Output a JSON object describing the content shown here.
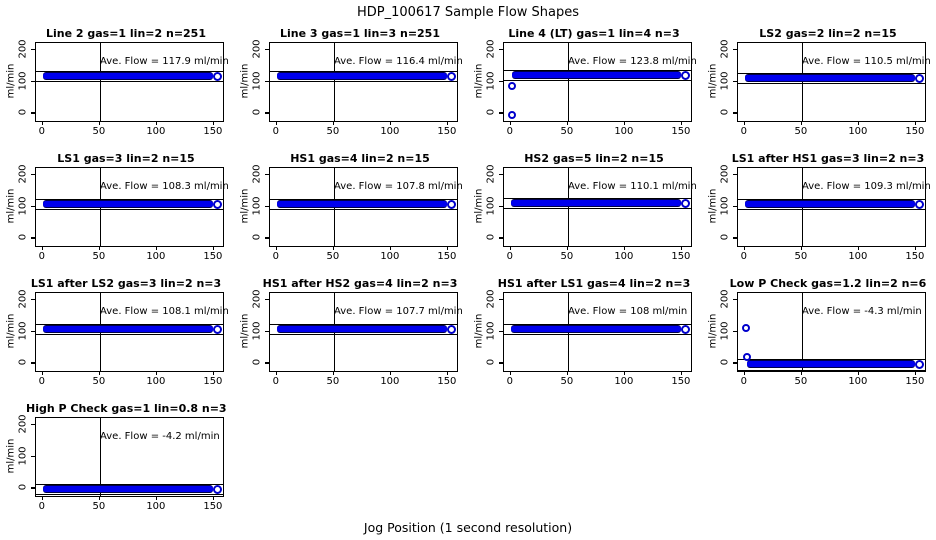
{
  "header": {
    "title": "HDP_100617  Sample Flow Shapes"
  },
  "footer": {
    "xlabel": "Jog Position (1 second resolution)"
  },
  "colors": {
    "point_blue": "#0000ee",
    "axis_black": "#000000",
    "background": "#ffffff"
  },
  "chart_data": {
    "type": "scatter",
    "title": "HDP_100617  Sample Flow Shapes",
    "xlabel": "Jog Position (1 second resolution)",
    "ylabel": "ml/min",
    "xlim": [
      -6,
      158
    ],
    "ylim": [
      -25,
      222
    ],
    "x_ticks": [
      0,
      50,
      100,
      150
    ],
    "y_ticks": [
      0,
      100,
      200
    ],
    "vline_x": 50,
    "grid": "vertical line at x=50 only",
    "legend": "none",
    "panels": [
      {
        "title": "Line 2 gas=1 lin=2 n=251",
        "gas": "1",
        "lin": "2",
        "n": "251",
        "ave_flow": 117.9,
        "annotation": "Ave. Flow =  117.9  ml/min",
        "band": {
          "x_start": 0,
          "x_end": 153,
          "center": 117.9,
          "half_height": 9
        },
        "outliers": []
      },
      {
        "title": "Line 3 gas=1 lin=3 n=251",
        "gas": "1",
        "lin": "3",
        "n": "251",
        "ave_flow": 116.4,
        "annotation": "Ave. Flow =  116.4  ml/min",
        "band": {
          "x_start": 0,
          "x_end": 153,
          "center": 116.4,
          "half_height": 9
        },
        "outliers": []
      },
      {
        "title": "Line 4 (LT) gas=1 lin=4 n=3",
        "gas": "1",
        "lin": "4",
        "n": "3",
        "ave_flow": 123.8,
        "annotation": "Ave. Flow =  123.8  ml/min",
        "band": {
          "x_start": 1,
          "x_end": 153,
          "center": 122,
          "half_height": 10
        },
        "outliers": [
          {
            "x": 1,
            "y": 87
          },
          {
            "x": 1,
            "y": -5
          }
        ]
      },
      {
        "title": "LS2 gas=2 lin=2 n=15",
        "gas": "2",
        "lin": "2",
        "n": "15",
        "ave_flow": 110.5,
        "annotation": "Ave. Flow =  110.5  ml/min",
        "band": {
          "x_start": 0,
          "x_end": 153,
          "center": 110.5,
          "half_height": 9
        },
        "outliers": []
      },
      {
        "title": "LS1 gas=3 lin=2 n=15",
        "gas": "3",
        "lin": "2",
        "n": "15",
        "ave_flow": 108.3,
        "annotation": "Ave. Flow =  108.3  ml/min",
        "band": {
          "x_start": 0,
          "x_end": 153,
          "center": 108.3,
          "half_height": 9
        },
        "outliers": []
      },
      {
        "title": "HS1 gas=4 lin=2 n=15",
        "gas": "4",
        "lin": "2",
        "n": "15",
        "ave_flow": 107.8,
        "annotation": "Ave. Flow =  107.8  ml/min",
        "band": {
          "x_start": 0,
          "x_end": 153,
          "center": 107.8,
          "half_height": 9
        },
        "outliers": []
      },
      {
        "title": "HS2 gas=5 lin=2 n=15",
        "gas": "5",
        "lin": "2",
        "n": "15",
        "ave_flow": 110.1,
        "annotation": "Ave. Flow =  110.1  ml/min",
        "band": {
          "x_start": 0,
          "x_end": 153,
          "center": 110.1,
          "half_height": 9
        },
        "outliers": []
      },
      {
        "title": "LS1 after HS1 gas=3 lin=2 n=3",
        "gas": "3",
        "lin": "2",
        "n": "3",
        "ave_flow": 109.3,
        "annotation": "Ave. Flow =  109.3  ml/min",
        "band": {
          "x_start": 0,
          "x_end": 153,
          "center": 109.3,
          "half_height": 9
        },
        "outliers": []
      },
      {
        "title": "LS1 after LS2 gas=3 lin=2 n=3",
        "gas": "3",
        "lin": "2",
        "n": "3",
        "ave_flow": 108.1,
        "annotation": "Ave. Flow =  108.1  ml/min",
        "band": {
          "x_start": 0,
          "x_end": 153,
          "center": 108.1,
          "half_height": 9
        },
        "outliers": []
      },
      {
        "title": "HS1 after HS2 gas=4 lin=2 n=3",
        "gas": "4",
        "lin": "2",
        "n": "3",
        "ave_flow": 107.7,
        "annotation": "Ave. Flow =  107.7  ml/min",
        "band": {
          "x_start": 0,
          "x_end": 153,
          "center": 107.7,
          "half_height": 9
        },
        "outliers": []
      },
      {
        "title": "HS1 after LS1 gas=4 lin=2 n=3",
        "gas": "4",
        "lin": "2",
        "n": "3",
        "ave_flow": 108,
        "annotation": "Ave. Flow =  108  ml/min",
        "band": {
          "x_start": 0,
          "x_end": 153,
          "center": 108,
          "half_height": 9
        },
        "outliers": []
      },
      {
        "title": "Low P Check gas=1.2 lin=2 n=6",
        "gas": "1.2",
        "lin": "2",
        "n": "6",
        "ave_flow": -4.3,
        "annotation": "Ave. Flow =  -4.3  ml/min",
        "band": {
          "x_start": 2,
          "x_end": 153,
          "center": -4.3,
          "half_height": 9
        },
        "outliers": [
          {
            "x": 1,
            "y": 110
          },
          {
            "x": 2,
            "y": 20
          }
        ]
      },
      {
        "title": "High P Check gas=1 lin=0.8 n=3",
        "gas": "1",
        "lin": "0.8",
        "n": "3",
        "ave_flow": -4.2,
        "annotation": "Ave. Flow =  -4.2  ml/min",
        "band": {
          "x_start": 0,
          "x_end": 153,
          "center": -4.2,
          "half_height": 9
        },
        "outliers": []
      }
    ]
  }
}
